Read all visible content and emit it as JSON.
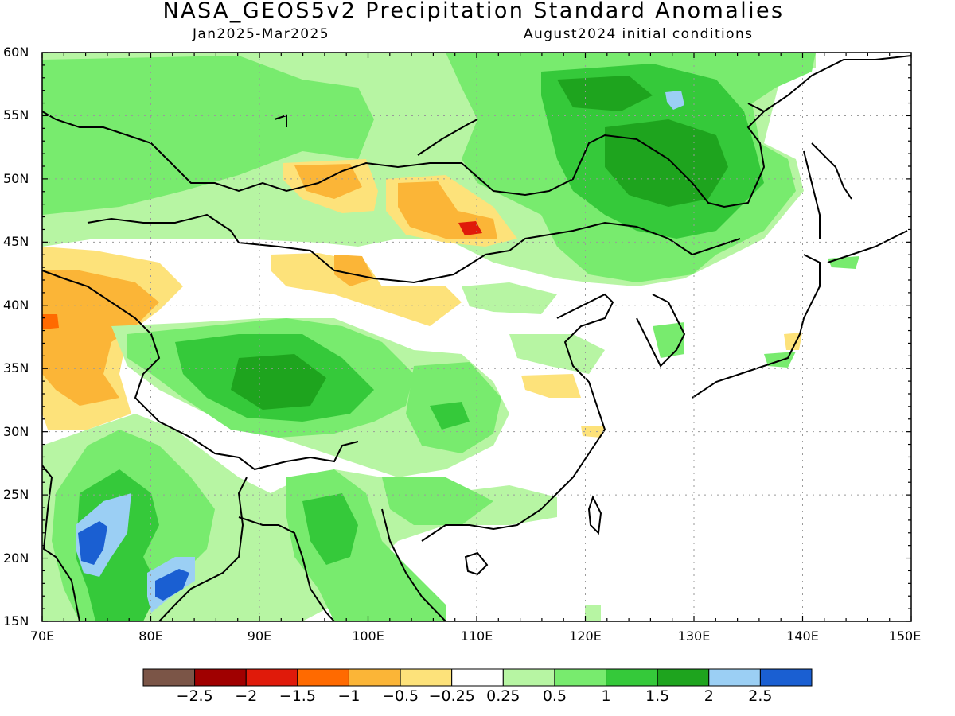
{
  "title": "NASA_GEOS5v2 Precipitation Standard Anomalies",
  "subtitle_period": "Jan2025-Mar2025",
  "subtitle_init": "August2024 initial conditions",
  "lat_labels": [
    "60N",
    "55N",
    "50N",
    "45N",
    "40N",
    "35N",
    "30N",
    "25N",
    "20N",
    "15N"
  ],
  "lon_labels": [
    "70E",
    "80E",
    "90E",
    "100E",
    "110E",
    "120E",
    "130E",
    "140E",
    "150E"
  ],
  "colorbar": {
    "colors": [
      "#7b5547",
      "#a00000",
      "#e01a0a",
      "#ff6a00",
      "#fbb537",
      "#fde27a",
      "#ffffff",
      "#b7f5a3",
      "#78eb6e",
      "#35c93a",
      "#1ea41e",
      "#9bcff4",
      "#1a5fd2"
    ],
    "labels": [
      "-2.5",
      "-2",
      "-1.5",
      "-1",
      "-0.5",
      "-0.25",
      "0.25",
      "0.5",
      "1",
      "1.5",
      "2",
      "2.5"
    ]
  },
  "chart_data": {
    "type": "heatmap",
    "title": "NASA_GEOS5v2 Precipitation Standard Anomalies",
    "lon_range": [
      70,
      150
    ],
    "lat_range": [
      15,
      60
    ],
    "grid": "dotted",
    "color_levels": [
      -2.5,
      -2,
      -1.5,
      -1,
      -0.5,
      -0.25,
      0.25,
      0.5,
      1,
      1.5,
      2,
      2.5
    ],
    "anomaly_regions": [
      {
        "level": "0.25 to 0.5",
        "lon": [
          72,
          130
        ],
        "lat": [
          42,
          60
        ]
      },
      {
        "level": "0.5 to 1",
        "lon": [
          95,
          142
        ],
        "lat": [
          45,
          60
        ]
      },
      {
        "level": "1 to 1.5",
        "lon": [
          115,
          138
        ],
        "lat": [
          46,
          58
        ]
      },
      {
        "level": "1.5 to 2",
        "lon": [
          123,
          132
        ],
        "lat": [
          49,
          55
        ]
      },
      {
        "level": "0.5 to 1",
        "lon": [
          82,
          112
        ],
        "lat": [
          28,
          38
        ]
      },
      {
        "level": "1 to 1.5",
        "lon": [
          86,
          101
        ],
        "lat": [
          31,
          37
        ]
      },
      {
        "level": "0.5 to 1",
        "lon": [
          74,
          112
        ],
        "lat": [
          15,
          29
        ]
      },
      {
        "level": "2 to 2.5",
        "lon": [
          73,
          81
        ],
        "lat": [
          17,
          24
        ]
      },
      {
        "level": "2.5 to 3",
        "lon": [
          74,
          77
        ],
        "lat": [
          19,
          22
        ]
      },
      {
        "level": "-0.5 to -0.25",
        "lon": [
          70,
          82
        ],
        "lat": [
          30,
          44
        ]
      },
      {
        "level": "-1 to -0.5",
        "lon": [
          70,
          77
        ],
        "lat": [
          33,
          40
        ]
      },
      {
        "level": "-1 to -0.5",
        "lon": [
          95,
          103
        ],
        "lat": [
          48,
          51
        ]
      },
      {
        "level": "-1 to -0.5",
        "lon": [
          104,
          112
        ],
        "lat": [
          44,
          49
        ]
      },
      {
        "level": "-1.5 to -1",
        "lon": [
          110,
          112
        ],
        "lat": [
          46,
          47
        ]
      },
      {
        "level": "-0.5 to -0.25",
        "lon": [
          97,
          108
        ],
        "lat": [
          39,
          43
        ]
      },
      {
        "level": "2 to 2.5",
        "lon": [
          128,
          130
        ],
        "lat": [
          55,
          56
        ]
      }
    ]
  }
}
